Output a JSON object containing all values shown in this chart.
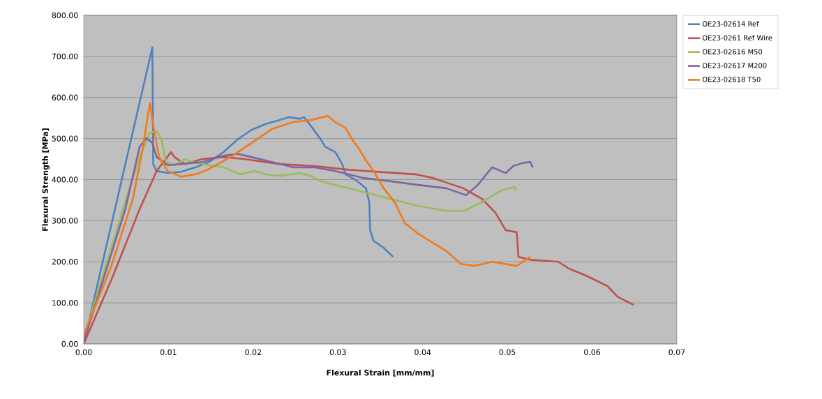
{
  "chart_data": {
    "type": "line",
    "xlabel": "Flexural Strain [mm/mm]",
    "ylabel": "Flexural Strength [MPa]",
    "xlim": [
      0,
      0.07
    ],
    "ylim": [
      0,
      800
    ],
    "xticks": [
      {
        "value": 0,
        "label": "0.00"
      },
      {
        "value": 0.01,
        "label": "0.01"
      },
      {
        "value": 0.02,
        "label": "0.02"
      },
      {
        "value": 0.03,
        "label": "0.03"
      },
      {
        "value": 0.04,
        "label": "0.04"
      },
      {
        "value": 0.05,
        "label": "0.05"
      },
      {
        "value": 0.06,
        "label": "0.06"
      },
      {
        "value": 0.07,
        "label": "0.07"
      }
    ],
    "yticks": [
      {
        "value": 0,
        "label": "0.00"
      },
      {
        "value": 100,
        "label": "100.00"
      },
      {
        "value": 200,
        "label": "200.00"
      },
      {
        "value": 300,
        "label": "300.00"
      },
      {
        "value": 400,
        "label": "400.00"
      },
      {
        "value": 500,
        "label": "500.00"
      },
      {
        "value": 600,
        "label": "600.00"
      },
      {
        "value": 700,
        "label": "700.00"
      },
      {
        "value": 800,
        "label": "800.00"
      }
    ],
    "grid": "y",
    "legend": "top right",
    "marker": "none",
    "line_style": "solid",
    "series": [
      {
        "name": "OE23-02614 Ref",
        "color": "#4f81bd",
        "x": [
          0,
          0.0081,
          0.0082,
          0.0086,
          0.0099,
          0.0115,
          0.0132,
          0.0148,
          0.0165,
          0.0181,
          0.0198,
          0.0214,
          0.0231,
          0.0242,
          0.0255,
          0.026,
          0.0268,
          0.028,
          0.0285,
          0.0297,
          0.0305,
          0.0309,
          0.0321,
          0.0333,
          0.0337,
          0.0338,
          0.0342,
          0.0354,
          0.0365
        ],
        "values": [
          0,
          722,
          438,
          421,
          416,
          419,
          430,
          443,
          467,
          497,
          521,
          535,
          545,
          552,
          548,
          552,
          531,
          497,
          480,
          467,
          438,
          413,
          399,
          379,
          345,
          277,
          251,
          234,
          212
        ]
      },
      {
        "name": "OE23-0261 Ref Wire",
        "color": "#c0504d",
        "x": [
          0,
          0.0033,
          0.0066,
          0.0086,
          0.0103,
          0.0107,
          0.0119,
          0.014,
          0.0165,
          0.0189,
          0.0231,
          0.0272,
          0.0313,
          0.0354,
          0.0391,
          0.0412,
          0.0432,
          0.0448,
          0.047,
          0.0486,
          0.0498,
          0.0511,
          0.0513,
          0.0527,
          0.056,
          0.0573,
          0.0593,
          0.0618,
          0.063,
          0.0649
        ],
        "values": [
          0,
          158,
          328,
          421,
          467,
          455,
          438,
          450,
          455,
          450,
          438,
          433,
          424,
          418,
          413,
          404,
          390,
          379,
          353,
          319,
          277,
          272,
          212,
          205,
          200,
          183,
          166,
          141,
          115,
          95
        ]
      },
      {
        "name": "OE23-02616 M50",
        "color": "#9bbb59",
        "x": [
          0,
          0.0054,
          0.0066,
          0.0078,
          0.0086,
          0.0092,
          0.0097,
          0.0107,
          0.0119,
          0.0128,
          0.0148,
          0.0165,
          0.0185,
          0.0202,
          0.0214,
          0.0231,
          0.0255,
          0.0268,
          0.028,
          0.0297,
          0.033,
          0.0362,
          0.0395,
          0.0428,
          0.0449,
          0.047,
          0.0494,
          0.0509,
          0.051
        ],
        "values": [
          14,
          379,
          455,
          514,
          518,
          497,
          443,
          435,
          450,
          443,
          435,
          430,
          413,
          421,
          413,
          409,
          416,
          409,
          396,
          387,
          370,
          353,
          336,
          324,
          324,
          345,
          375,
          382,
          374
        ]
      },
      {
        "name": "OE23-02617 M200",
        "color": "#8064a2",
        "x": [
          0,
          0.0049,
          0.0066,
          0.0074,
          0.0081,
          0.0086,
          0.0099,
          0.0115,
          0.014,
          0.0165,
          0.0181,
          0.0198,
          0.0222,
          0.0247,
          0.0272,
          0.0297,
          0.033,
          0.0362,
          0.0395,
          0.0428,
          0.0451,
          0.0465,
          0.0482,
          0.0498,
          0.0507,
          0.0519,
          0.0527,
          0.053
        ],
        "values": [
          5,
          328,
          480,
          501,
          489,
          455,
          435,
          438,
          443,
          458,
          463,
          455,
          443,
          430,
          430,
          421,
          404,
          396,
          387,
          379,
          362,
          387,
          430,
          416,
          433,
          441,
          443,
          430
        ]
      },
      {
        "name": "OE23-02618 T50",
        "color": "#f07a1c",
        "x": [
          0,
          0.0033,
          0.0058,
          0.007,
          0.0078,
          0.0082,
          0.0089,
          0.0099,
          0.0115,
          0.0132,
          0.0148,
          0.0173,
          0.0198,
          0.0222,
          0.0247,
          0.0268,
          0.0288,
          0.0297,
          0.0309,
          0.0317,
          0.0325,
          0.0333,
          0.0342,
          0.0354,
          0.0367,
          0.0379,
          0.0395,
          0.0412,
          0.0428,
          0.0445,
          0.0461,
          0.0482,
          0.0511,
          0.0527
        ],
        "values": [
          22,
          192,
          353,
          480,
          586,
          531,
          455,
          421,
          407,
          413,
          426,
          455,
          489,
          523,
          540,
          545,
          555,
          540,
          526,
          497,
          475,
          447,
          421,
          379,
          345,
          294,
          268,
          246,
          226,
          195,
          190,
          200,
          190,
          212
        ]
      }
    ]
  }
}
